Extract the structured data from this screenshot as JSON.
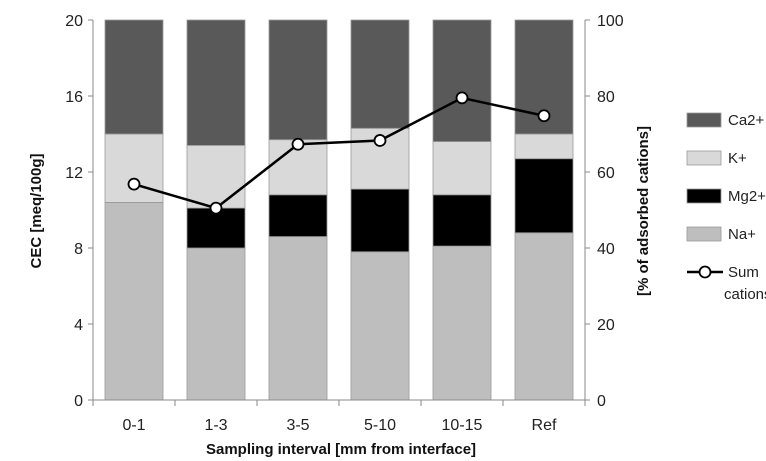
{
  "chart_data": {
    "type": "bar",
    "stacked": true,
    "categories": [
      "0-1",
      "1-3",
      "3-5",
      "5-10",
      "10-15",
      "Ref"
    ],
    "series": [
      {
        "name": "Na+",
        "color": "#bebebe",
        "values": [
          10.4,
          8.0,
          8.6,
          7.8,
          8.1,
          8.8
        ]
      },
      {
        "name": "Mg2+",
        "color": "#000000",
        "values": [
          0.0,
          2.1,
          2.2,
          3.3,
          2.7,
          3.9
        ]
      },
      {
        "name": "K+",
        "color": "#d9d9d9",
        "values": [
          3.6,
          3.3,
          2.9,
          3.2,
          2.8,
          1.3
        ]
      },
      {
        "name": "Ca2+",
        "color": "#595959",
        "values": [
          6.0,
          6.6,
          6.3,
          5.7,
          6.4,
          6.0
        ]
      }
    ],
    "line_series": {
      "name": "Sum cations",
      "axis": "right",
      "values": [
        56.8,
        50.5,
        67.3,
        68.3,
        79.5,
        74.8
      ]
    },
    "xlabel": "Sampling interval [mm from interface]",
    "ylabel": "CEC [meq/100g]",
    "y2label": "[% of adsorbed cations]",
    "ylim": [
      0,
      20
    ],
    "yticks": [
      0,
      4,
      8,
      12,
      16,
      20
    ],
    "y2lim": [
      0,
      100
    ],
    "y2ticks": [
      0,
      20,
      40,
      60,
      80,
      100
    ],
    "legend_order": [
      "Ca2+",
      "K+",
      "Mg2+",
      "Na+",
      "Sum cations"
    ],
    "legend_position": "right",
    "grid": false
  }
}
